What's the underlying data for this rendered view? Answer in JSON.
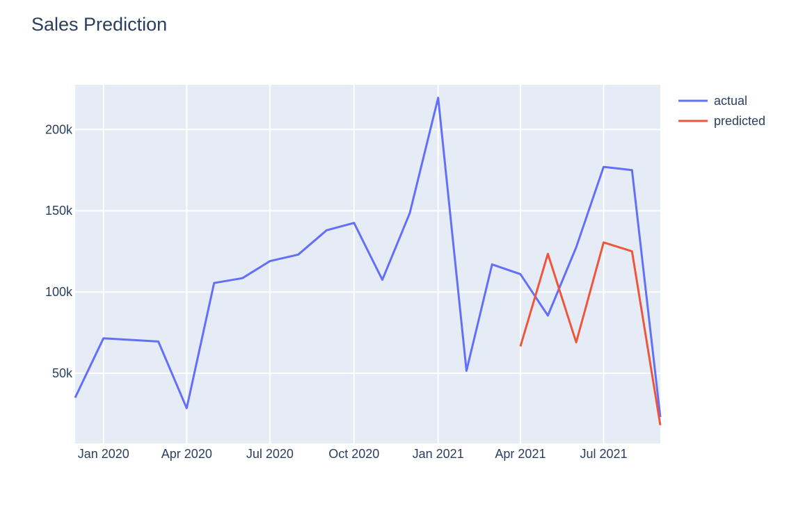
{
  "chart_data": {
    "type": "line",
    "title": "Sales Prediction",
    "xlabel": "",
    "ylabel": "",
    "x_tick_labels": [
      "Jan 2020",
      "Apr 2020",
      "Jul 2020",
      "Oct 2020",
      "Jan 2021",
      "Apr 2021",
      "Jul 2021"
    ],
    "x_tick_dates": [
      "2020-01-01",
      "2020-04-01",
      "2020-07-01",
      "2020-10-01",
      "2021-01-01",
      "2021-04-01",
      "2021-07-01"
    ],
    "xlim": [
      "2019-12-01",
      "2021-09-01"
    ],
    "y_tick_values": [
      50000,
      100000,
      150000,
      200000
    ],
    "y_tick_labels": [
      "50k",
      "100k",
      "150k",
      "200k"
    ],
    "ylim": [
      6800,
      227500
    ],
    "grid": true,
    "legend_position": "top-right",
    "series": [
      {
        "name": "actual",
        "color": "#636efa",
        "x": [
          "2019-12-01",
          "2020-01-01",
          "2020-02-01",
          "2020-03-01",
          "2020-04-01",
          "2020-05-01",
          "2020-06-01",
          "2020-07-01",
          "2020-08-01",
          "2020-09-01",
          "2020-10-01",
          "2020-11-01",
          "2020-12-01",
          "2021-01-01",
          "2021-02-01",
          "2021-03-01",
          "2021-04-01",
          "2021-05-01",
          "2021-06-01",
          "2021-07-01",
          "2021-08-01",
          "2021-09-01"
        ],
        "y": [
          35000,
          71500,
          70500,
          69500,
          28500,
          105500,
          108500,
          119000,
          123000,
          138000,
          142500,
          107500,
          148500,
          219500,
          51500,
          117000,
          111000,
          85500,
          127500,
          177000,
          175000,
          23000
        ]
      },
      {
        "name": "predicted",
        "color": "#ef553b",
        "x": [
          "2021-04-01",
          "2021-05-01",
          "2021-06-01",
          "2021-07-01",
          "2021-08-01",
          "2021-09-01"
        ],
        "y": [
          66500,
          123500,
          69000,
          130500,
          125000,
          18000
        ]
      }
    ]
  }
}
